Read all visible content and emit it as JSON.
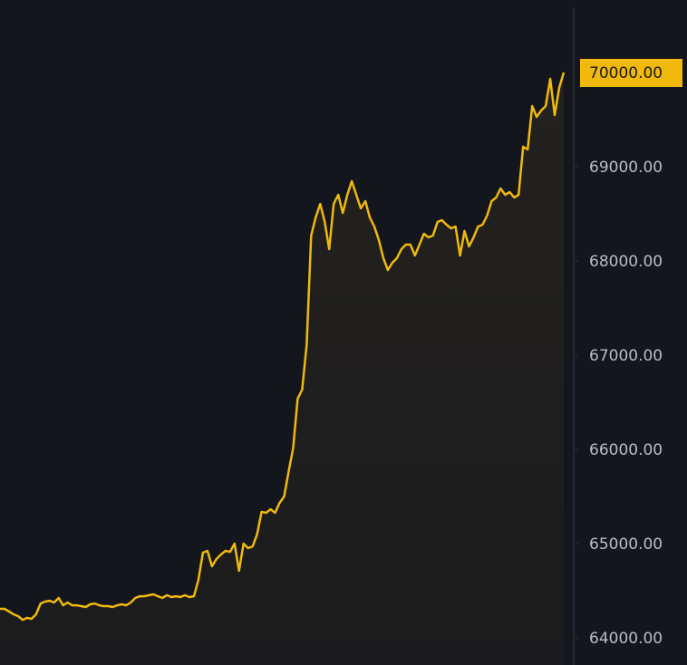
{
  "chart_data": {
    "type": "area",
    "values": [
      64308,
      64308,
      64279,
      64250,
      64231,
      64192,
      64212,
      64202,
      64250,
      64365,
      64385,
      64394,
      64375,
      64423,
      64346,
      64375,
      64346,
      64346,
      64337,
      64327,
      64356,
      64365,
      64346,
      64337,
      64337,
      64327,
      64346,
      64356,
      64346,
      64375,
      64423,
      64442,
      64442,
      64452,
      64462,
      64442,
      64423,
      64452,
      64433,
      64442,
      64433,
      64452,
      64433,
      64442,
      64615,
      64904,
      64923,
      64760,
      64837,
      64885,
      64923,
      64913,
      65000,
      64712,
      65000,
      64952,
      64971,
      65096,
      65337,
      65327,
      65365,
      65327,
      65433,
      65500,
      65769,
      66010,
      66538,
      66635,
      67115,
      68269,
      68462,
      68606,
      68413,
      68125,
      68606,
      68702,
      68510,
      68702,
      68846,
      68702,
      68558,
      68635,
      68462,
      68365,
      68221,
      68029,
      67904,
      67981,
      68029,
      68125,
      68173,
      68173,
      68058,
      68173,
      68288,
      68250,
      68269,
      68413,
      68433,
      68385,
      68346,
      68365,
      68058,
      68317,
      68154,
      68250,
      68365,
      68385,
      68481,
      68635,
      68673,
      68769,
      68702,
      68731,
      68673,
      68702,
      69212,
      69183,
      69644,
      69529,
      69596,
      69644,
      69933,
      69548,
      69837,
      70000
    ],
    "color": "#f0b90b",
    "ylim": [
      63712,
      70769
    ],
    "yticks": [
      {
        "value": 64000,
        "label": "64000.00"
      },
      {
        "value": 65000,
        "label": "65000.00"
      },
      {
        "value": 66000,
        "label": "66000.00"
      },
      {
        "value": 67000,
        "label": "67000.00"
      },
      {
        "value": 68000,
        "label": "68000.00"
      },
      {
        "value": 69000,
        "label": "69000.00"
      }
    ],
    "price_tag": {
      "value": 70000,
      "label": "70000.00"
    }
  }
}
